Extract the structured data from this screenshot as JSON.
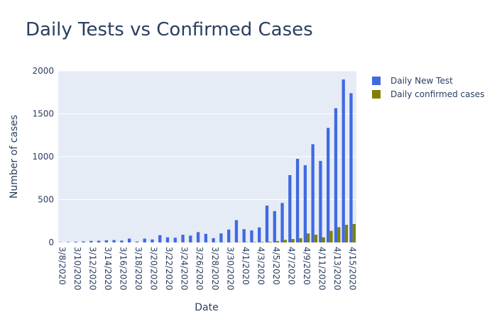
{
  "chart_data": {
    "type": "bar",
    "title": "Daily Tests vs Confirmed Cases",
    "x_label": "Date",
    "y_label": "Number of cases",
    "categories": [
      "3/8/2020",
      "3/9/2020",
      "3/10/2020",
      "3/11/2020",
      "3/12/2020",
      "3/13/2020",
      "3/14/2020",
      "3/15/2020",
      "3/16/2020",
      "3/17/2020",
      "3/18/2020",
      "3/19/2020",
      "3/20/2020",
      "3/21/2020",
      "3/22/2020",
      "3/23/2020",
      "3/24/2020",
      "3/25/2020",
      "3/26/2020",
      "3/27/2020",
      "3/28/2020",
      "3/29/2020",
      "3/30/2020",
      "3/31/2020",
      "4/1/2020",
      "4/2/2020",
      "4/3/2020",
      "4/4/2020",
      "4/5/2020",
      "4/6/2020",
      "4/7/2020",
      "4/8/2020",
      "4/9/2020",
      "4/10/2020",
      "4/11/2020",
      "4/12/2020",
      "4/13/2020",
      "4/14/2020",
      "4/15/2020"
    ],
    "series": [
      {
        "name": "Daily New Test",
        "color": "#4169e1",
        "values": [
          3,
          5,
          8,
          12,
          18,
          20,
          25,
          28,
          22,
          45,
          10,
          45,
          35,
          85,
          60,
          55,
          90,
          80,
          120,
          100,
          50,
          105,
          150,
          260,
          155,
          140,
          175,
          430,
          365,
          460,
          785,
          975,
          900,
          1145,
          950,
          1335,
          1565,
          1900,
          1740
        ]
      },
      {
        "name": "Daily confirmed cases",
        "color": "#808000",
        "values": [
          0,
          0,
          0,
          0,
          0,
          0,
          0,
          0,
          0,
          0,
          0,
          0,
          0,
          0,
          1,
          1,
          1,
          1,
          1,
          2,
          2,
          2,
          2,
          3,
          3,
          4,
          5,
          8,
          15,
          30,
          40,
          50,
          105,
          90,
          60,
          135,
          178,
          205,
          215
        ]
      }
    ],
    "ylim": [
      0,
      2000
    ],
    "yticks": [
      0,
      500,
      1000,
      1500,
      2000
    ],
    "grid": true,
    "legend": "top-right"
  }
}
